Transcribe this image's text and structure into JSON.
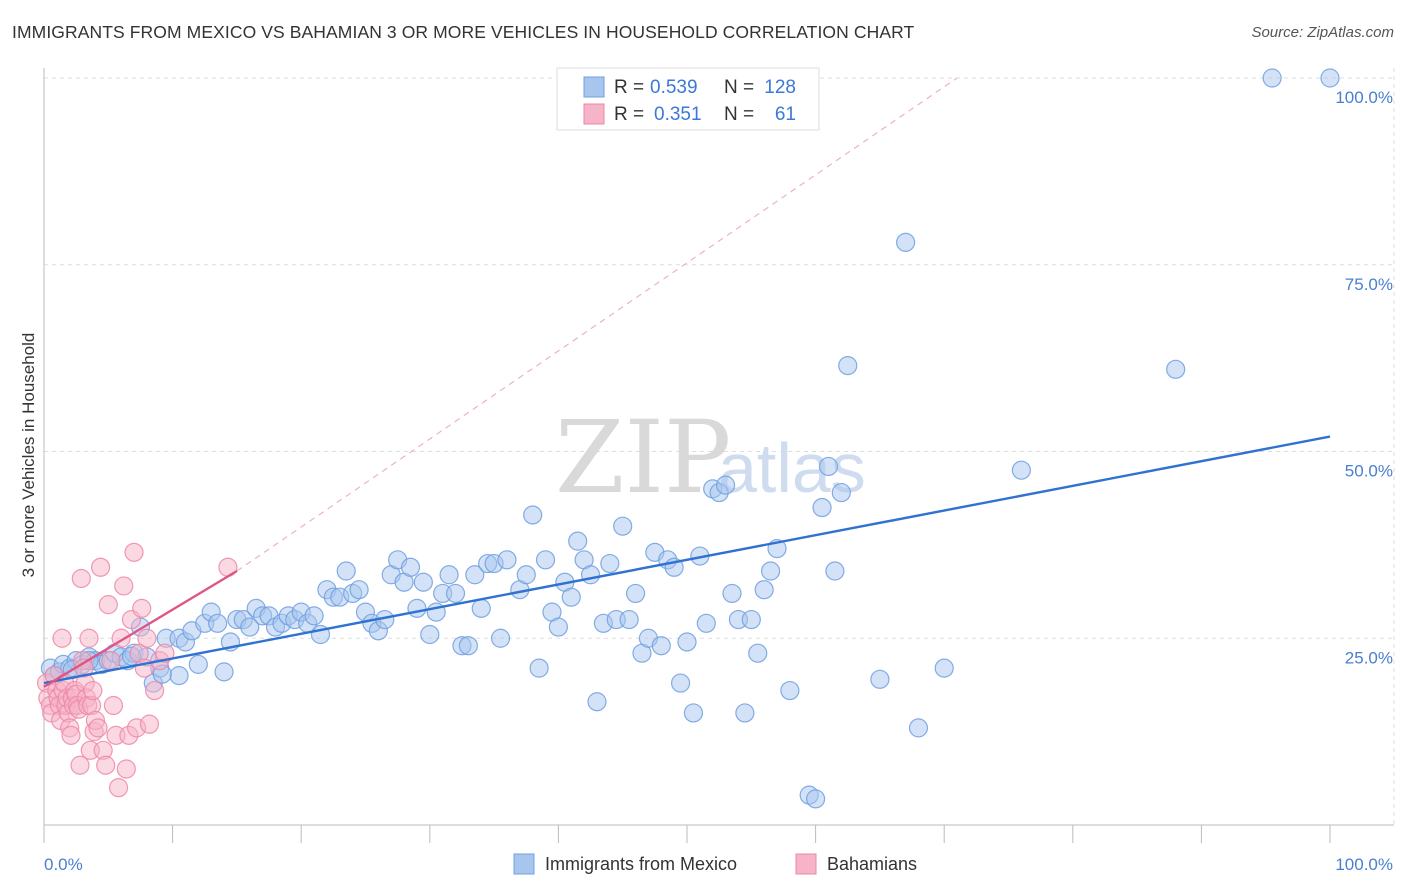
{
  "title": "IMMIGRANTS FROM MEXICO VS BAHAMIAN 3 OR MORE VEHICLES IN HOUSEHOLD CORRELATION CHART",
  "source": "Source: ZipAtlas.com",
  "watermark": {
    "zip": "ZIP",
    "atlas": "atlas"
  },
  "legend": {
    "r_label": "R =",
    "n_label": "N =",
    "entries": [
      {
        "r": "0.539",
        "n": "128",
        "color": "#a8c5ee"
      },
      {
        "r": "0.351",
        "n": "61",
        "color": "#f5b4c8"
      }
    ]
  },
  "chart_data": {
    "type": "scatter",
    "title": "IMMIGRANTS FROM MEXICO VS BAHAMIAN 3 OR MORE VEHICLES IN HOUSEHOLD CORRELATION CHART",
    "xlabel": "",
    "ylabel": "3 or more Vehicles in Household",
    "xlim": [
      0,
      100
    ],
    "ylim": [
      0,
      100
    ],
    "x_tick_labels": [
      "0.0%",
      "100.0%"
    ],
    "y_tick_labels": [
      "100.0%",
      "75.0%",
      "50.0%",
      "25.0%"
    ],
    "y_tick_values": [
      100,
      75,
      50,
      25
    ],
    "series": [
      {
        "name": "Immigrants from Mexico",
        "color": "#6f9fe0",
        "fill": "#a8c5ee",
        "trend": {
          "x0": 0,
          "y0": 19.0,
          "x1": 100,
          "y1": 52.0,
          "color": "#2f72d2"
        },
        "points": [
          [
            0.5,
            21
          ],
          [
            0.8,
            20
          ],
          [
            1.2,
            20.5
          ],
          [
            1.5,
            21.5
          ],
          [
            2,
            21
          ],
          [
            2.5,
            22
          ],
          [
            3,
            21.5
          ],
          [
            3.5,
            22.5
          ],
          [
            4,
            22
          ],
          [
            4.5,
            21.5
          ],
          [
            5,
            22
          ],
          [
            5.5,
            23
          ],
          [
            6,
            22.5
          ],
          [
            6.5,
            22
          ],
          [
            7,
            23
          ],
          [
            7.5,
            26.5
          ],
          [
            8,
            22.5
          ],
          [
            8.5,
            19
          ],
          [
            9,
            21
          ],
          [
            9.5,
            25
          ],
          [
            10.5,
            25
          ],
          [
            10.5,
            20
          ],
          [
            11,
            24.5
          ],
          [
            11.5,
            26
          ],
          [
            12,
            21.5
          ],
          [
            12.5,
            27
          ],
          [
            13,
            28.5
          ],
          [
            13.5,
            27
          ],
          [
            14,
            20.5
          ],
          [
            14.5,
            24.5
          ],
          [
            15,
            27.5
          ],
          [
            15.5,
            27.5
          ],
          [
            16,
            26.5
          ],
          [
            16.5,
            29
          ],
          [
            17,
            28
          ],
          [
            17.5,
            28
          ],
          [
            18,
            26.5
          ],
          [
            18.5,
            27
          ],
          [
            19,
            28
          ],
          [
            19.5,
            27.5
          ],
          [
            20,
            28.5
          ],
          [
            20.5,
            27
          ],
          [
            21,
            28
          ],
          [
            21.5,
            25.5
          ],
          [
            22,
            31.5
          ],
          [
            22.5,
            30.5
          ],
          [
            23,
            30.5
          ],
          [
            23.5,
            34
          ],
          [
            24,
            31
          ],
          [
            24.5,
            31.5
          ],
          [
            25,
            28.5
          ],
          [
            25.5,
            27
          ],
          [
            26,
            26
          ],
          [
            26.5,
            27.5
          ],
          [
            27,
            33.5
          ],
          [
            27.5,
            35.5
          ],
          [
            28,
            32.5
          ],
          [
            28.5,
            34.5
          ],
          [
            29,
            29
          ],
          [
            29.5,
            32.5
          ],
          [
            30,
            25.5
          ],
          [
            30.5,
            28.5
          ],
          [
            31,
            31
          ],
          [
            31.5,
            33.5
          ],
          [
            32,
            31
          ],
          [
            32.5,
            24
          ],
          [
            33,
            24
          ],
          [
            33.5,
            33.5
          ],
          [
            34,
            29
          ],
          [
            34.5,
            35
          ],
          [
            35,
            35
          ],
          [
            35.5,
            25
          ],
          [
            36,
            35.5
          ],
          [
            37,
            31.5
          ],
          [
            37.5,
            33.5
          ],
          [
            38,
            41.5
          ],
          [
            38.5,
            21
          ],
          [
            39,
            35.5
          ],
          [
            39.5,
            28.5
          ],
          [
            40,
            26.5
          ],
          [
            40.5,
            32.5
          ],
          [
            41,
            30.5
          ],
          [
            41.5,
            38
          ],
          [
            42,
            35.5
          ],
          [
            42.5,
            33.5
          ],
          [
            43,
            16.5
          ],
          [
            43.5,
            27
          ],
          [
            44,
            35
          ],
          [
            44.5,
            27.5
          ],
          [
            45,
            40
          ],
          [
            45.5,
            27.5
          ],
          [
            46,
            31
          ],
          [
            46.5,
            23
          ],
          [
            47,
            25
          ],
          [
            47.5,
            36.5
          ],
          [
            48,
            24
          ],
          [
            48.5,
            35.5
          ],
          [
            49,
            34.5
          ],
          [
            49.5,
            19
          ],
          [
            50,
            24.5
          ],
          [
            50.5,
            15
          ],
          [
            51,
            36
          ],
          [
            51.5,
            27
          ],
          [
            52,
            45
          ],
          [
            52.5,
            44.5
          ],
          [
            53,
            45.5
          ],
          [
            53.5,
            31
          ],
          [
            54,
            27.5
          ],
          [
            54.5,
            15
          ],
          [
            55,
            27.5
          ],
          [
            55.5,
            23
          ],
          [
            56,
            31.5
          ],
          [
            56.5,
            34
          ],
          [
            57,
            37
          ],
          [
            58,
            18
          ],
          [
            59.5,
            4
          ],
          [
            60,
            3.5
          ],
          [
            60.5,
            42.5
          ],
          [
            61,
            48
          ],
          [
            61.5,
            34
          ],
          [
            62,
            44.5
          ],
          [
            65,
            19.5
          ],
          [
            67,
            78
          ],
          [
            68,
            13
          ],
          [
            70,
            21
          ],
          [
            62.5,
            61.5
          ],
          [
            76,
            47.5
          ],
          [
            88,
            61
          ],
          [
            95.5,
            100
          ],
          [
            100,
            100
          ],
          [
            3.5,
            22
          ],
          [
            6.8,
            22.6
          ],
          [
            9.2,
            20.2
          ],
          [
            2.2,
            20.8
          ]
        ]
      },
      {
        "name": "Bahamians",
        "color": "#ef86a8",
        "fill": "#f5b4c8",
        "trend": {
          "x0": 0,
          "y0": 18.5,
          "x1": 15,
          "y1": 34.0,
          "color": "#e05585"
        },
        "trend_ext": {
          "x0": 15,
          "y0": 34.0,
          "x1": 71,
          "y1": 100
        },
        "points": [
          [
            0.2,
            19
          ],
          [
            0.3,
            17
          ],
          [
            0.5,
            16
          ],
          [
            0.6,
            15
          ],
          [
            0.8,
            20
          ],
          [
            1,
            18
          ],
          [
            1.1,
            17
          ],
          [
            1.2,
            16
          ],
          [
            1.3,
            14
          ],
          [
            1.4,
            25
          ],
          [
            1.5,
            18
          ],
          [
            1.6,
            19
          ],
          [
            1.7,
            16
          ],
          [
            1.8,
            17
          ],
          [
            1.9,
            15
          ],
          [
            2,
            13
          ],
          [
            2.1,
            12
          ],
          [
            2.2,
            17
          ],
          [
            2.3,
            16
          ],
          [
            2.4,
            18
          ],
          [
            2.5,
            17.5
          ],
          [
            2.6,
            16
          ],
          [
            2.7,
            15.5
          ],
          [
            2.8,
            8
          ],
          [
            2.9,
            33
          ],
          [
            3,
            22
          ],
          [
            3.1,
            21
          ],
          [
            3.2,
            19
          ],
          [
            3.3,
            17
          ],
          [
            3.4,
            16
          ],
          [
            3.5,
            25
          ],
          [
            3.6,
            10
          ],
          [
            3.7,
            16
          ],
          [
            3.8,
            18
          ],
          [
            3.9,
            12.5
          ],
          [
            4,
            14
          ],
          [
            4.2,
            13
          ],
          [
            4.4,
            34.5
          ],
          [
            4.6,
            10
          ],
          [
            4.8,
            8
          ],
          [
            5,
            29.5
          ],
          [
            5.2,
            22
          ],
          [
            5.4,
            16
          ],
          [
            5.6,
            12
          ],
          [
            5.8,
            5
          ],
          [
            6,
            25
          ],
          [
            6.2,
            32
          ],
          [
            6.4,
            7.5
          ],
          [
            6.6,
            12
          ],
          [
            6.8,
            27.5
          ],
          [
            7,
            36.5
          ],
          [
            7.2,
            13
          ],
          [
            7.4,
            23
          ],
          [
            7.6,
            29
          ],
          [
            7.8,
            21
          ],
          [
            8,
            25
          ],
          [
            8.2,
            13.5
          ],
          [
            8.6,
            18
          ],
          [
            9,
            22
          ],
          [
            9.4,
            23
          ],
          [
            14.3,
            34.5
          ]
        ]
      }
    ]
  },
  "bottom_legend": [
    "Immigrants from Mexico",
    "Bahamians"
  ]
}
